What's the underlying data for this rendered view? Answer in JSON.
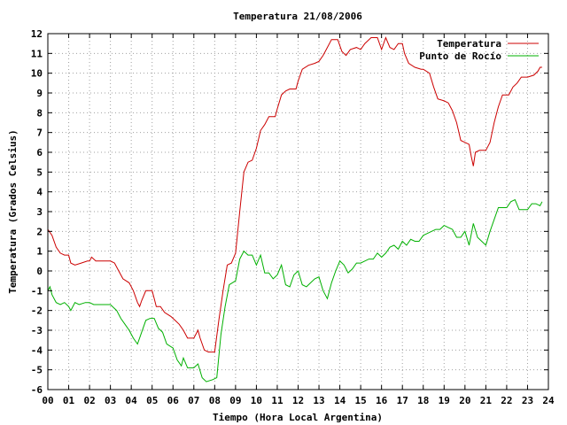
{
  "chart_data": {
    "type": "line",
    "title": "Temperatura 21/08/2006",
    "xlabel": "Tiempo (Hora Local Argentina)",
    "ylabel": "Temperatura (Grados Celsius)",
    "xlim": [
      0,
      24
    ],
    "ylim": [
      -6,
      12
    ],
    "x_ticks": [
      "00",
      "01",
      "02",
      "03",
      "04",
      "05",
      "06",
      "07",
      "08",
      "09",
      "10",
      "11",
      "12",
      "13",
      "14",
      "15",
      "16",
      "17",
      "18",
      "19",
      "20",
      "21",
      "22",
      "23",
      "24"
    ],
    "y_ticks": [
      -6,
      -5,
      -4,
      -3,
      -2,
      -1,
      0,
      1,
      2,
      3,
      4,
      5,
      6,
      7,
      8,
      9,
      10,
      11,
      12
    ],
    "grid": true,
    "legend_position": "top-right",
    "colors": {
      "temperatura": "#cc0000",
      "punto_de_rocio": "#00b000"
    },
    "series": [
      {
        "name": "Temperatura",
        "color": "#cc0000",
        "points": [
          [
            0.0,
            2.1
          ],
          [
            0.2,
            1.8
          ],
          [
            0.4,
            1.2
          ],
          [
            0.6,
            0.9
          ],
          [
            0.8,
            0.8
          ],
          [
            1.0,
            0.8
          ],
          [
            1.1,
            0.4
          ],
          [
            1.3,
            0.3
          ],
          [
            1.6,
            0.4
          ],
          [
            1.9,
            0.5
          ],
          [
            2.0,
            0.5
          ],
          [
            2.1,
            0.7
          ],
          [
            2.3,
            0.5
          ],
          [
            2.7,
            0.5
          ],
          [
            3.0,
            0.5
          ],
          [
            3.2,
            0.4
          ],
          [
            3.4,
            0.0
          ],
          [
            3.6,
            -0.4
          ],
          [
            3.9,
            -0.6
          ],
          [
            4.1,
            -1.0
          ],
          [
            4.3,
            -1.6
          ],
          [
            4.4,
            -1.8
          ],
          [
            4.5,
            -1.5
          ],
          [
            4.7,
            -1.0
          ],
          [
            5.0,
            -1.0
          ],
          [
            5.1,
            -1.4
          ],
          [
            5.2,
            -1.8
          ],
          [
            5.4,
            -1.8
          ],
          [
            5.6,
            -2.1
          ],
          [
            5.9,
            -2.3
          ],
          [
            6.1,
            -2.5
          ],
          [
            6.3,
            -2.7
          ],
          [
            6.5,
            -3.0
          ],
          [
            6.7,
            -3.4
          ],
          [
            7.0,
            -3.4
          ],
          [
            7.2,
            -3.0
          ],
          [
            7.3,
            -3.4
          ],
          [
            7.5,
            -4.0
          ],
          [
            7.7,
            -4.1
          ],
          [
            8.0,
            -4.1
          ],
          [
            8.2,
            -2.5
          ],
          [
            8.4,
            -1.0
          ],
          [
            8.6,
            0.3
          ],
          [
            8.8,
            0.4
          ],
          [
            9.0,
            0.9
          ],
          [
            9.2,
            3.0
          ],
          [
            9.4,
            5.0
          ],
          [
            9.6,
            5.5
          ],
          [
            9.8,
            5.6
          ],
          [
            10.0,
            6.2
          ],
          [
            10.2,
            7.1
          ],
          [
            10.4,
            7.4
          ],
          [
            10.6,
            7.8
          ],
          [
            10.9,
            7.8
          ],
          [
            11.0,
            8.2
          ],
          [
            11.2,
            8.9
          ],
          [
            11.4,
            9.1
          ],
          [
            11.6,
            9.2
          ],
          [
            11.9,
            9.2
          ],
          [
            12.0,
            9.6
          ],
          [
            12.2,
            10.2
          ],
          [
            12.5,
            10.4
          ],
          [
            12.8,
            10.5
          ],
          [
            13.0,
            10.6
          ],
          [
            13.2,
            10.9
          ],
          [
            13.4,
            11.3
          ],
          [
            13.6,
            11.7
          ],
          [
            13.9,
            11.7
          ],
          [
            14.1,
            11.1
          ],
          [
            14.3,
            10.9
          ],
          [
            14.5,
            11.2
          ],
          [
            14.8,
            11.3
          ],
          [
            15.0,
            11.2
          ],
          [
            15.2,
            11.5
          ],
          [
            15.5,
            11.8
          ],
          [
            15.8,
            11.8
          ],
          [
            16.0,
            11.2
          ],
          [
            16.2,
            11.8
          ],
          [
            16.4,
            11.3
          ],
          [
            16.6,
            11.2
          ],
          [
            16.8,
            11.5
          ],
          [
            17.0,
            11.5
          ],
          [
            17.1,
            11.0
          ],
          [
            17.3,
            10.5
          ],
          [
            17.6,
            10.3
          ],
          [
            17.9,
            10.2
          ],
          [
            18.0,
            10.2
          ],
          [
            18.3,
            10.0
          ],
          [
            18.5,
            9.3
          ],
          [
            18.7,
            8.7
          ],
          [
            19.0,
            8.6
          ],
          [
            19.2,
            8.5
          ],
          [
            19.4,
            8.1
          ],
          [
            19.6,
            7.5
          ],
          [
            19.8,
            6.6
          ],
          [
            20.0,
            6.5
          ],
          [
            20.2,
            6.4
          ],
          [
            20.3,
            5.8
          ],
          [
            20.4,
            5.3
          ],
          [
            20.5,
            6.0
          ],
          [
            20.7,
            6.1
          ],
          [
            21.0,
            6.1
          ],
          [
            21.2,
            6.5
          ],
          [
            21.4,
            7.5
          ],
          [
            21.6,
            8.3
          ],
          [
            21.8,
            8.9
          ],
          [
            22.1,
            8.9
          ],
          [
            22.3,
            9.3
          ],
          [
            22.5,
            9.5
          ],
          [
            22.7,
            9.8
          ],
          [
            23.0,
            9.8
          ],
          [
            23.3,
            9.9
          ],
          [
            23.5,
            10.1
          ],
          [
            23.6,
            10.3
          ],
          [
            23.7,
            10.3
          ]
        ]
      },
      {
        "name": "Punto de Rocío",
        "color": "#00b000",
        "points": [
          [
            0.0,
            -1.0
          ],
          [
            0.1,
            -0.8
          ],
          [
            0.2,
            -1.2
          ],
          [
            0.4,
            -1.6
          ],
          [
            0.6,
            -1.7
          ],
          [
            0.8,
            -1.6
          ],
          [
            1.0,
            -1.8
          ],
          [
            1.1,
            -2.0
          ],
          [
            1.3,
            -1.6
          ],
          [
            1.5,
            -1.7
          ],
          [
            1.8,
            -1.6
          ],
          [
            2.0,
            -1.6
          ],
          [
            2.2,
            -1.7
          ],
          [
            2.5,
            -1.7
          ],
          [
            2.8,
            -1.7
          ],
          [
            3.0,
            -1.7
          ],
          [
            3.3,
            -2.0
          ],
          [
            3.5,
            -2.4
          ],
          [
            3.7,
            -2.7
          ],
          [
            3.9,
            -3.0
          ],
          [
            4.1,
            -3.4
          ],
          [
            4.3,
            -3.7
          ],
          [
            4.5,
            -3.1
          ],
          [
            4.7,
            -2.5
          ],
          [
            4.9,
            -2.4
          ],
          [
            5.1,
            -2.4
          ],
          [
            5.3,
            -2.9
          ],
          [
            5.5,
            -3.1
          ],
          [
            5.7,
            -3.7
          ],
          [
            6.0,
            -3.9
          ],
          [
            6.2,
            -4.5
          ],
          [
            6.4,
            -4.8
          ],
          [
            6.5,
            -4.4
          ],
          [
            6.7,
            -4.9
          ],
          [
            7.0,
            -4.9
          ],
          [
            7.2,
            -4.7
          ],
          [
            7.4,
            -5.4
          ],
          [
            7.6,
            -5.6
          ],
          [
            7.9,
            -5.5
          ],
          [
            8.1,
            -5.4
          ],
          [
            8.3,
            -3.2
          ],
          [
            8.5,
            -1.8
          ],
          [
            8.7,
            -0.7
          ],
          [
            9.0,
            -0.5
          ],
          [
            9.2,
            0.6
          ],
          [
            9.4,
            1.0
          ],
          [
            9.6,
            0.8
          ],
          [
            9.8,
            0.8
          ],
          [
            10.0,
            0.3
          ],
          [
            10.2,
            0.8
          ],
          [
            10.4,
            -0.1
          ],
          [
            10.6,
            -0.1
          ],
          [
            10.8,
            -0.4
          ],
          [
            11.0,
            -0.2
          ],
          [
            11.2,
            0.3
          ],
          [
            11.4,
            -0.7
          ],
          [
            11.6,
            -0.8
          ],
          [
            11.8,
            -0.2
          ],
          [
            12.0,
            0.0
          ],
          [
            12.2,
            -0.7
          ],
          [
            12.4,
            -0.8
          ],
          [
            12.6,
            -0.6
          ],
          [
            12.8,
            -0.4
          ],
          [
            13.0,
            -0.3
          ],
          [
            13.2,
            -1.0
          ],
          [
            13.4,
            -1.4
          ],
          [
            13.6,
            -0.6
          ],
          [
            13.8,
            0.0
          ],
          [
            14.0,
            0.5
          ],
          [
            14.2,
            0.3
          ],
          [
            14.4,
            -0.1
          ],
          [
            14.6,
            0.1
          ],
          [
            14.8,
            0.4
          ],
          [
            15.0,
            0.4
          ],
          [
            15.2,
            0.5
          ],
          [
            15.4,
            0.6
          ],
          [
            15.6,
            0.6
          ],
          [
            15.8,
            0.9
          ],
          [
            16.0,
            0.7
          ],
          [
            16.2,
            0.9
          ],
          [
            16.4,
            1.2
          ],
          [
            16.6,
            1.3
          ],
          [
            16.8,
            1.1
          ],
          [
            17.0,
            1.5
          ],
          [
            17.2,
            1.3
          ],
          [
            17.4,
            1.6
          ],
          [
            17.6,
            1.5
          ],
          [
            17.8,
            1.5
          ],
          [
            18.0,
            1.8
          ],
          [
            18.2,
            1.9
          ],
          [
            18.4,
            2.0
          ],
          [
            18.6,
            2.1
          ],
          [
            18.8,
            2.1
          ],
          [
            19.0,
            2.3
          ],
          [
            19.2,
            2.2
          ],
          [
            19.4,
            2.1
          ],
          [
            19.6,
            1.7
          ],
          [
            19.8,
            1.7
          ],
          [
            20.0,
            2.0
          ],
          [
            20.2,
            1.3
          ],
          [
            20.4,
            2.4
          ],
          [
            20.6,
            1.7
          ],
          [
            20.8,
            1.5
          ],
          [
            21.0,
            1.3
          ],
          [
            21.2,
            2.0
          ],
          [
            21.4,
            2.6
          ],
          [
            21.6,
            3.2
          ],
          [
            21.8,
            3.2
          ],
          [
            22.0,
            3.2
          ],
          [
            22.2,
            3.5
          ],
          [
            22.4,
            3.6
          ],
          [
            22.6,
            3.1
          ],
          [
            22.8,
            3.1
          ],
          [
            23.0,
            3.1
          ],
          [
            23.2,
            3.4
          ],
          [
            23.4,
            3.4
          ],
          [
            23.6,
            3.3
          ],
          [
            23.7,
            3.5
          ]
        ]
      }
    ]
  }
}
